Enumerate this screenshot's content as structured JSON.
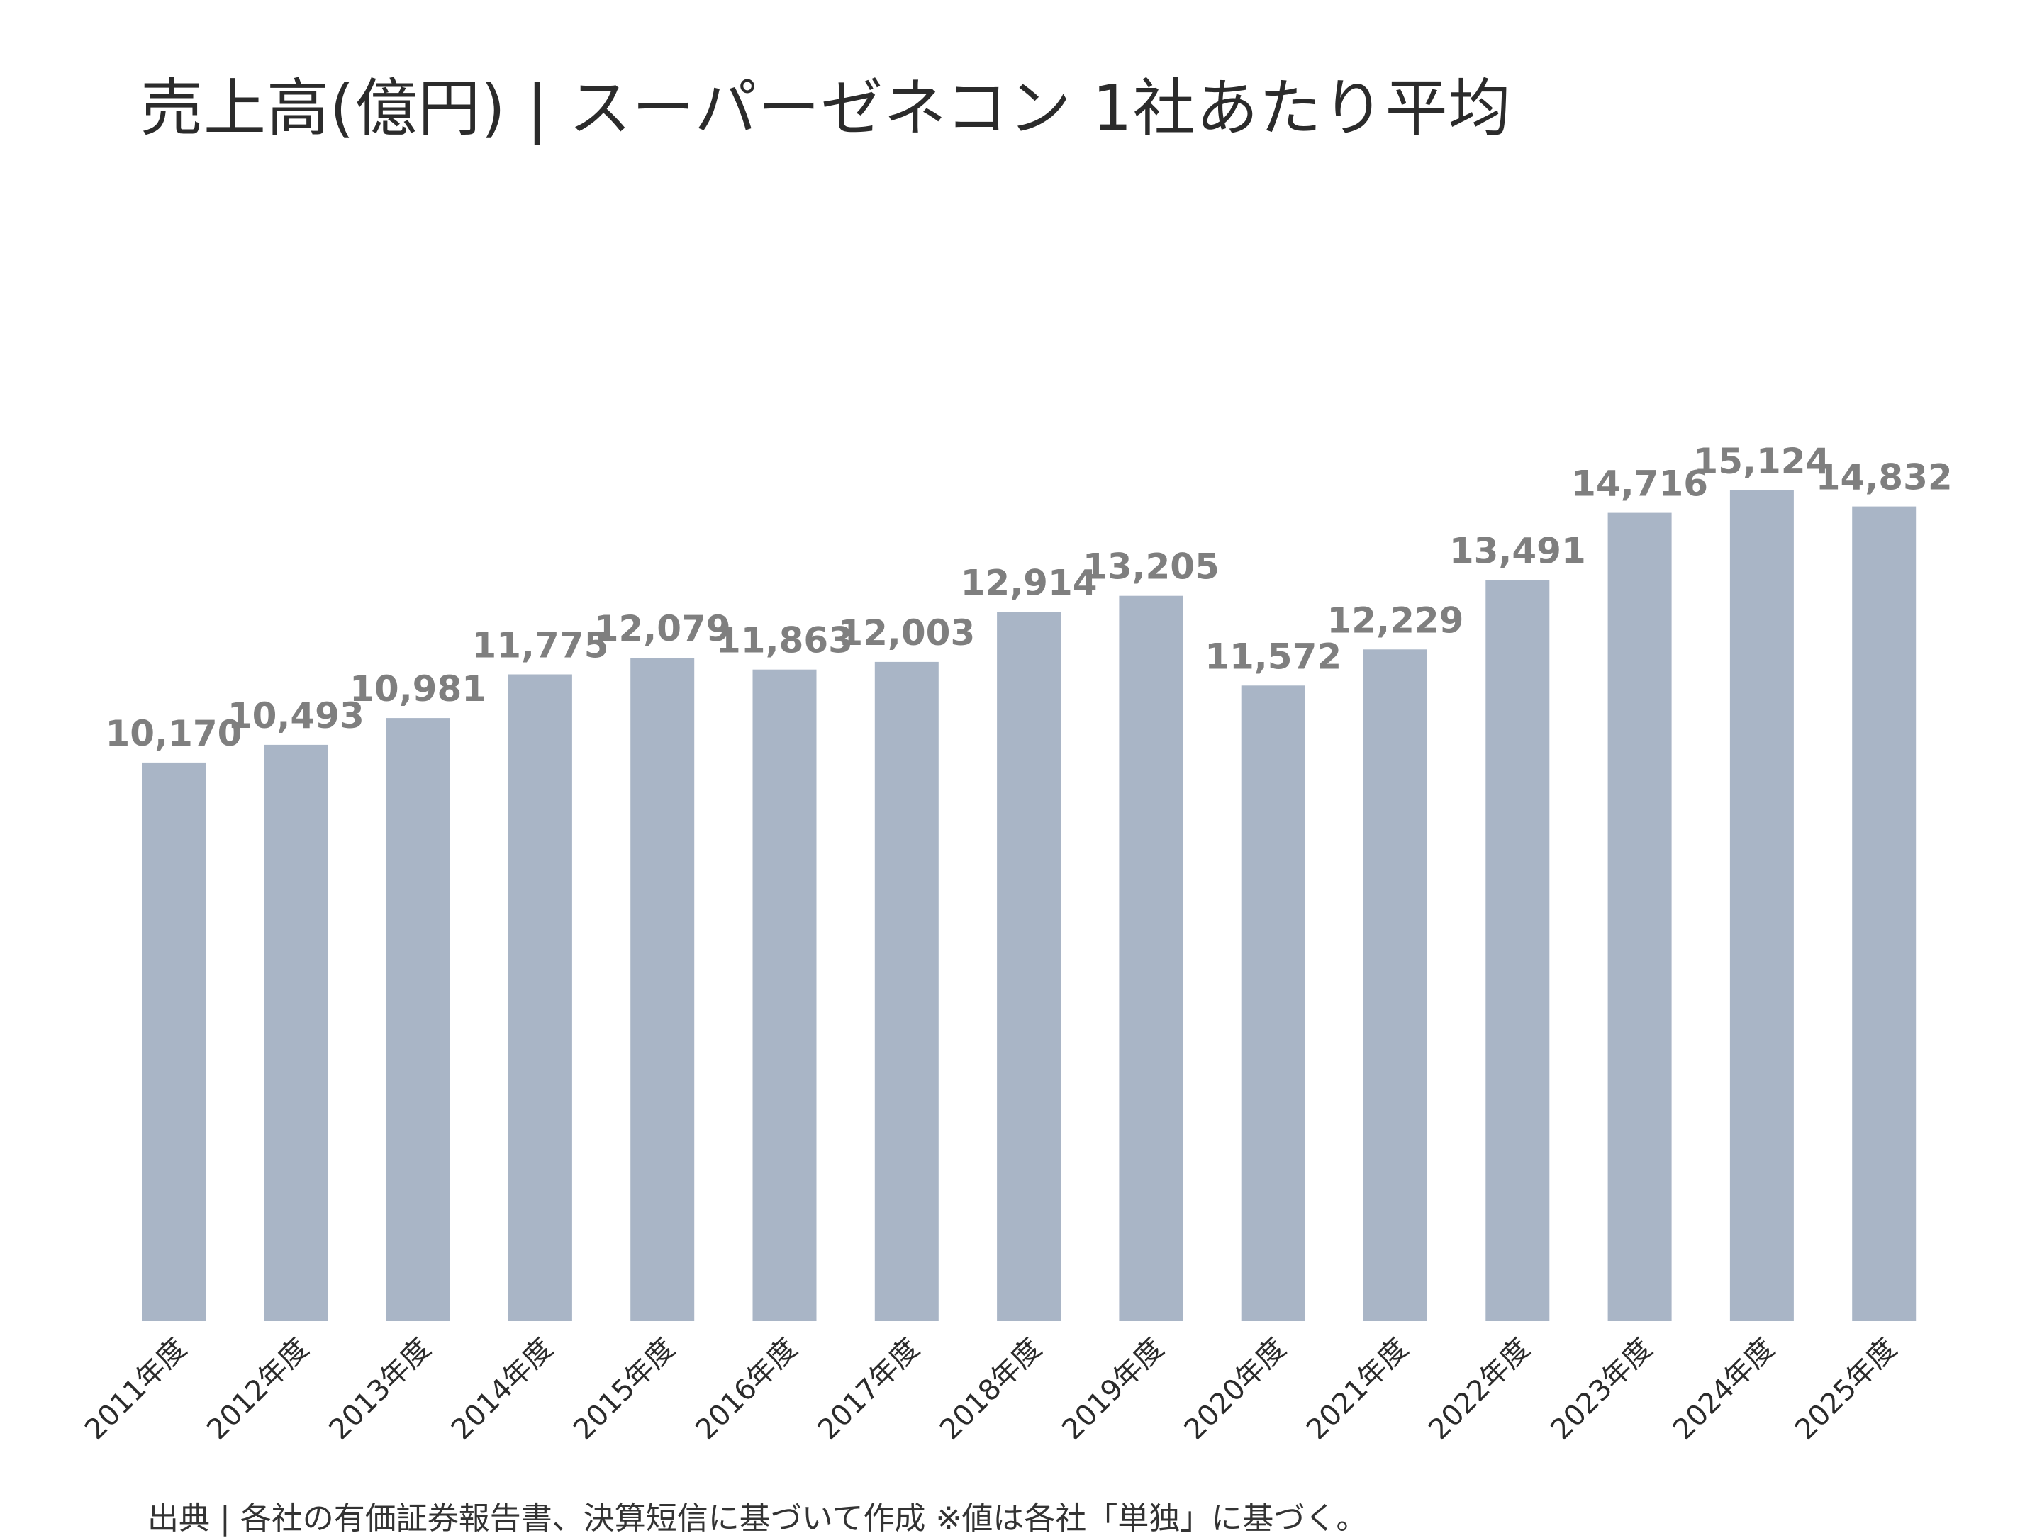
{
  "title": "売上高(億円) | スーパーゼネコン 1社あたり平均",
  "source": "出典 | 各社の有価証券報告書、決算短信に基づいて作成 ※値は各社「単独」に基づく。",
  "chart_data": {
    "type": "bar",
    "title": "売上高(億円) | スーパーゼネコン 1社あたり平均",
    "xlabel": "",
    "ylabel": "",
    "ylim": [
      0,
      15400
    ],
    "grid": false,
    "legend": "none",
    "bar_color": "#a9b5c6",
    "label_color": "#7f7f7f",
    "categories": [
      "2011年度",
      "2012年度",
      "2013年度",
      "2014年度",
      "2015年度",
      "2016年度",
      "2017年度",
      "2018年度",
      "2019年度",
      "2020年度",
      "2021年度",
      "2022年度",
      "2023年度",
      "2024年度",
      "2025年度"
    ],
    "values": [
      10170,
      10493,
      10981,
      11775,
      12079,
      11863,
      12003,
      12914,
      13205,
      11572,
      12229,
      13491,
      14716,
      15124,
      14832
    ],
    "value_labels": [
      "10,170",
      "10,493",
      "10,981",
      "11,775",
      "12,079",
      "11,863",
      "12,003",
      "12,914",
      "13,205",
      "11,572",
      "12,229",
      "13,491",
      "14,716",
      "15,124",
      "14,832"
    ]
  }
}
